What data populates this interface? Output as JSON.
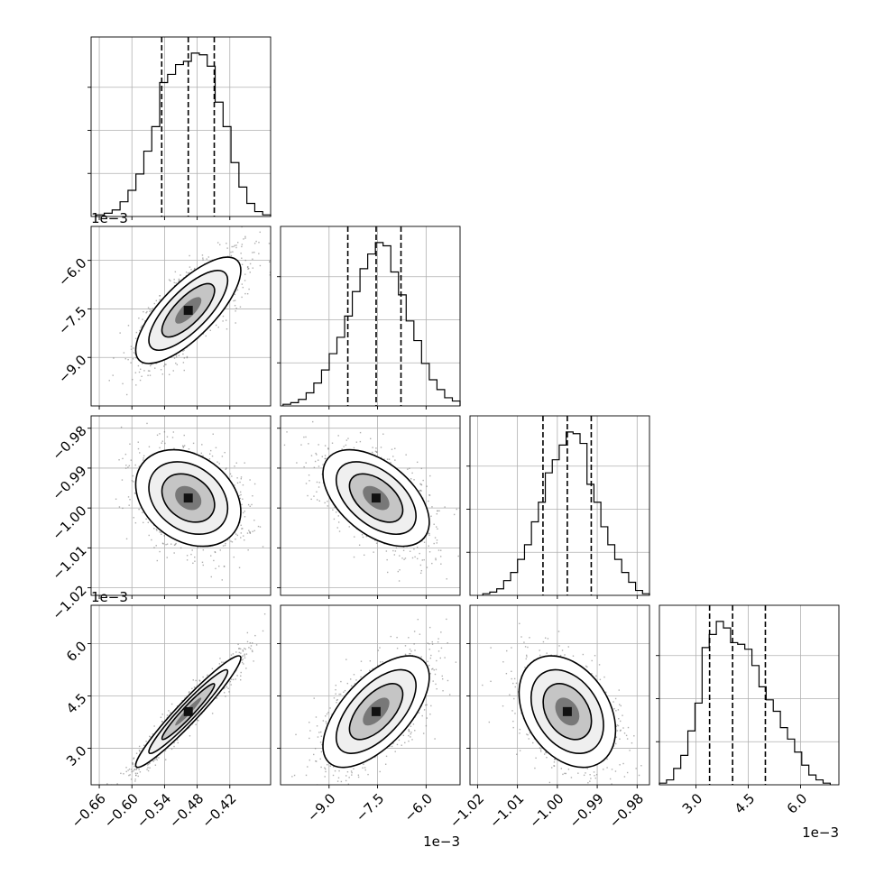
{
  "chart_data": {
    "type": "corner",
    "variables": [
      {
        "range": [
          -0.675,
          -0.345
        ],
        "ticks": [
          -0.66,
          -0.6,
          -0.54,
          -0.48,
          -0.42
        ],
        "tick_labels": [
          "−0.66",
          "−0.60",
          "−0.54",
          "−0.48",
          "−0.42"
        ],
        "offset": "1e−3",
        "quantiles": [
          -0.5452,
          -0.4964,
          -0.4486
        ]
      },
      {
        "range": [
          -10.5,
          -4.95
        ],
        "ticks": [
          -9.0,
          -7.5,
          -6.0
        ],
        "tick_labels": [
          "−9.0",
          "−7.5",
          "−6.0"
        ],
        "offset": "1e−3",
        "quantiles": [
          -8.42,
          -7.545,
          -6.776
        ]
      },
      {
        "range": [
          -1.0219,
          -0.9769
        ],
        "ticks": [
          -1.02,
          -1.01,
          -1.0,
          -0.99,
          -0.98
        ],
        "tick_labels": [
          "−1.02",
          "−1.01",
          "−1.00",
          "−0.99",
          "−0.98"
        ],
        "offset": "",
        "quantiles": [
          -1.0036,
          -0.9975,
          -0.9915
        ]
      },
      {
        "range": [
          1.95,
          7.1
        ],
        "ticks": [
          3.0,
          4.5,
          6.0
        ],
        "tick_labels": [
          "3.0",
          "4.5",
          "6.0"
        ],
        "offset": "1e−3",
        "quantiles": [
          3.39,
          4.05,
          4.99
        ]
      }
    ],
    "histograms": [
      [
        1,
        2,
        4,
        9,
        16,
        26,
        40,
        55,
        82,
        87,
        93,
        95,
        100,
        99,
        92,
        70,
        55,
        33,
        18,
        8,
        3,
        1
      ],
      [
        1,
        2,
        4,
        8,
        14,
        22,
        32,
        42,
        55,
        70,
        84,
        93,
        100,
        98,
        82,
        68,
        52,
        40,
        26,
        16,
        10,
        5,
        3
      ],
      [
        1,
        2,
        4,
        9,
        14,
        22,
        31,
        45,
        57,
        75,
        83,
        92,
        100,
        99,
        93,
        68,
        57,
        42,
        31,
        22,
        14,
        8,
        3,
        1
      ],
      [
        1,
        3,
        10,
        18,
        33,
        50,
        84,
        92,
        100,
        96,
        87,
        86,
        83,
        73,
        60,
        52,
        45,
        35,
        28,
        20,
        12,
        6,
        3,
        1
      ]
    ],
    "correlations": [
      [
        1,
        0.75,
        -0.28,
        0.96
      ],
      [
        0.75,
        1,
        -0.5,
        0.62
      ],
      [
        -0.28,
        -0.5,
        1,
        -0.33
      ],
      [
        0.96,
        0.62,
        -0.33,
        1
      ]
    ],
    "grid": true,
    "quantile_lines": "dashed"
  }
}
